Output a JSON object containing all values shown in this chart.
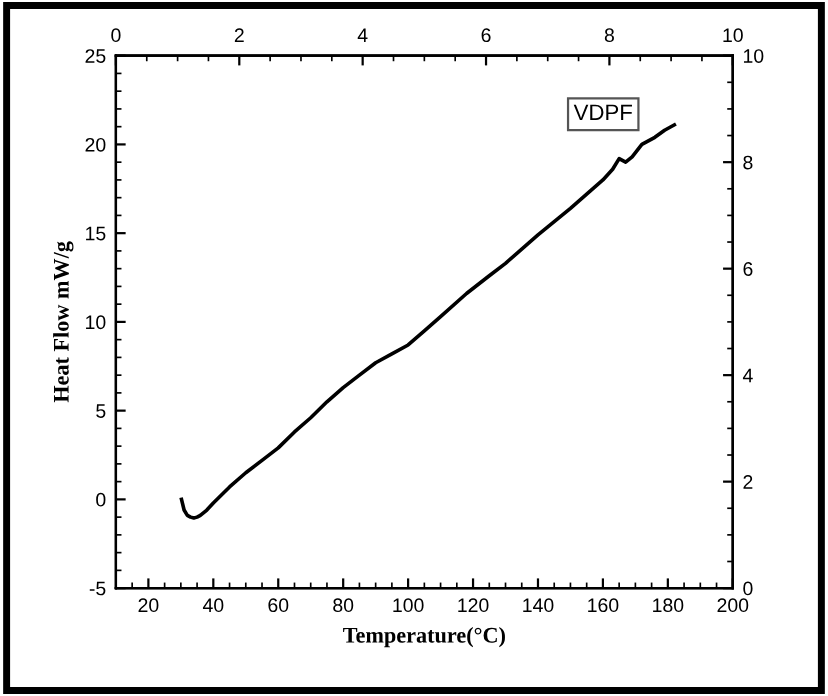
{
  "chart_data": {
    "type": "line",
    "xlabel": "Temperature(°C)",
    "ylabel": "Heat Flow mW/g",
    "annotations": [
      "VDPF"
    ],
    "series": [
      {
        "color": "#000000",
        "x": [
          30.2,
          31,
          32,
          33,
          34,
          35,
          36,
          38,
          40,
          45,
          50,
          55,
          60,
          65,
          70,
          75,
          80,
          85,
          90,
          95,
          100,
          105,
          110,
          118,
          125,
          130,
          140,
          150,
          155,
          160,
          163,
          165,
          167,
          169,
          172,
          176,
          179,
          182
        ],
        "values": [
          0,
          -0.6,
          -0.9,
          -1.0,
          -1.05,
          -1.0,
          -0.9,
          -0.6,
          -0.2,
          0.7,
          1.5,
          2.2,
          2.9,
          3.8,
          4.6,
          5.5,
          6.3,
          7.0,
          7.7,
          8.2,
          8.7,
          9.5,
          10.3,
          11.6,
          12.6,
          13.3,
          14.9,
          16.4,
          17.2,
          18.0,
          18.6,
          19.2,
          19.0,
          19.3,
          20.0,
          20.4,
          20.8,
          21.1
        ]
      }
    ],
    "xlim": [
      10,
      200
    ],
    "xticks": [
      20,
      40,
      60,
      80,
      100,
      120,
      140,
      160,
      180,
      200
    ],
    "ylim": [
      -5,
      25
    ],
    "yticks": [
      -5,
      0,
      5,
      10,
      15,
      20,
      25
    ],
    "x2lim": [
      0,
      10
    ],
    "x2ticks": [
      0,
      2,
      4,
      6,
      8,
      10
    ],
    "y2lim": [
      0,
      10
    ],
    "y2ticks": [
      0,
      2,
      4,
      6,
      8,
      10
    ],
    "grid": false,
    "legend": false,
    "marker": "none",
    "line_style": "solid"
  }
}
